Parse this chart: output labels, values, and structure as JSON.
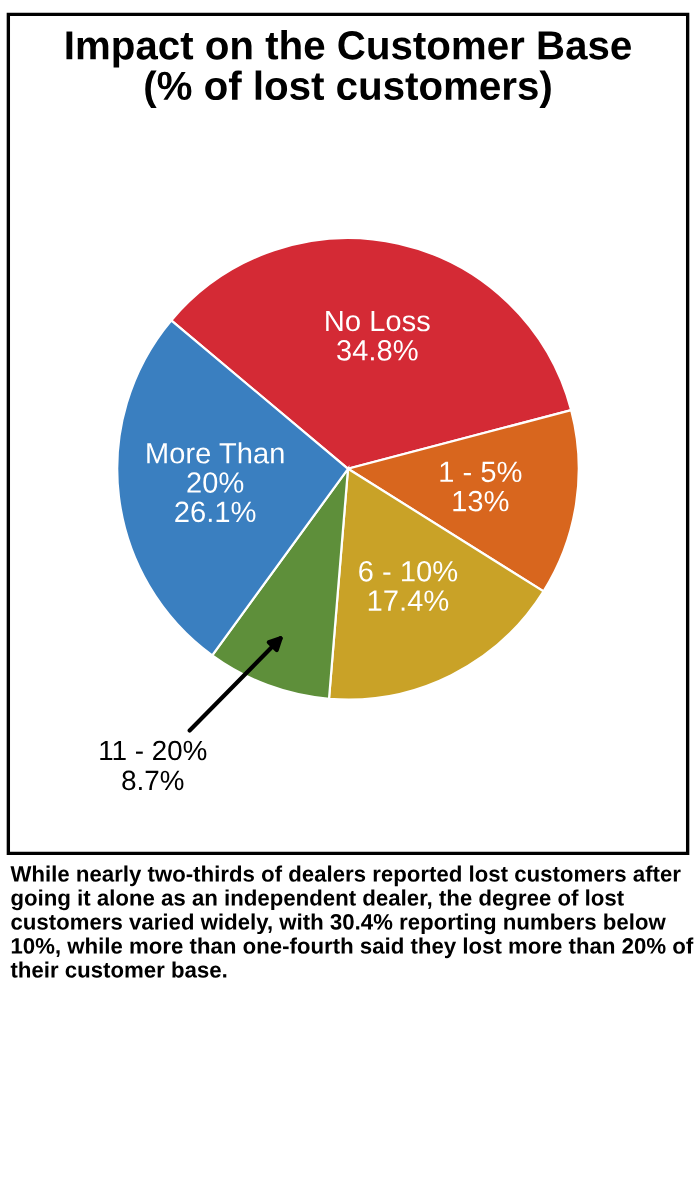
{
  "chart_data": {
    "type": "pie",
    "title": "Impact on the Customer Base\n(% of lost customers)",
    "categories": [
      "No Loss",
      "1 - 5%",
      "6 - 10%",
      "11 - 20%",
      "More Than\n20%"
    ],
    "values": [
      34.8,
      13,
      17.4,
      8.7,
      26.1
    ],
    "value_labels": [
      "34.8%",
      "13%",
      "17.4%",
      "8.7%",
      "26.1%"
    ],
    "colors": [
      "#d42a35",
      "#d8661e",
      "#c9a227",
      "#5e8f3a",
      "#3a7fc0"
    ],
    "annotations": [
      "While nearly two-thirds of dealers reported lost customers after going it alone as an independent dealer, the degree of lost customers varied widely, with 30.4% reporting numbers below 10%, while more than one-fourth said they lost more than 20% of their customer base."
    ]
  }
}
